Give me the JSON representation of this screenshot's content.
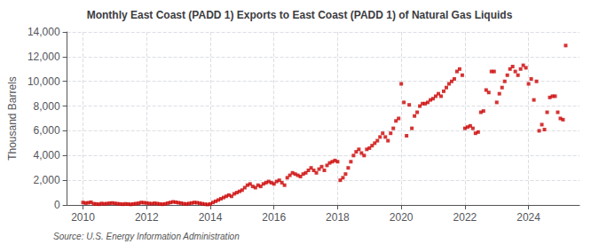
{
  "chart_data": {
    "type": "scatter",
    "title": "Monthly East Coast (PADD 1) Exports to East Coast (PADD 1) of Natural Gas Liquids",
    "ylabel": "Thousand Barrels",
    "annotations": [
      "Source: U.S. Energy Information Administration"
    ],
    "color": "#cc0000",
    "marker": "square",
    "grid": true,
    "xlim": [
      2009.5,
      2025.6
    ],
    "xticks": [
      2010,
      2012,
      2014,
      2016,
      2018,
      2020,
      2022,
      2024
    ],
    "ylim": [
      0,
      14000
    ],
    "yticks": [
      0,
      {
        "value": 2000,
        "label": "2,000"
      },
      {
        "value": 4000,
        "label": "4,000"
      },
      {
        "value": 6000,
        "label": "6,000"
      },
      {
        "value": 8000,
        "label": "8,000"
      },
      {
        "value": 10000,
        "label": "10,000"
      },
      {
        "value": 12000,
        "label": "12,000"
      },
      {
        "value": 14000,
        "label": "14,000"
      }
    ],
    "x": [
      2010.0,
      2010.083,
      2010.167,
      2010.25,
      2010.333,
      2010.417,
      2010.5,
      2010.583,
      2010.667,
      2010.75,
      2010.833,
      2010.917,
      2011.0,
      2011.083,
      2011.167,
      2011.25,
      2011.333,
      2011.417,
      2011.5,
      2011.583,
      2011.667,
      2011.75,
      2011.833,
      2011.917,
      2012.0,
      2012.083,
      2012.167,
      2012.25,
      2012.333,
      2012.417,
      2012.5,
      2012.583,
      2012.667,
      2012.75,
      2012.833,
      2012.917,
      2013.0,
      2013.083,
      2013.167,
      2013.25,
      2013.333,
      2013.417,
      2013.5,
      2013.583,
      2013.667,
      2013.75,
      2013.833,
      2013.917,
      2014.0,
      2014.083,
      2014.167,
      2014.25,
      2014.333,
      2014.417,
      2014.5,
      2014.583,
      2014.667,
      2014.75,
      2014.833,
      2014.917,
      2015.0,
      2015.083,
      2015.167,
      2015.25,
      2015.333,
      2015.417,
      2015.5,
      2015.583,
      2015.667,
      2015.75,
      2015.833,
      2015.917,
      2016.0,
      2016.083,
      2016.167,
      2016.25,
      2016.333,
      2016.417,
      2016.5,
      2016.583,
      2016.667,
      2016.75,
      2016.833,
      2016.917,
      2017.0,
      2017.083,
      2017.167,
      2017.25,
      2017.333,
      2017.417,
      2017.5,
      2017.583,
      2017.667,
      2017.75,
      2017.833,
      2017.917,
      2018.0,
      2018.083,
      2018.167,
      2018.25,
      2018.333,
      2018.417,
      2018.5,
      2018.583,
      2018.667,
      2018.75,
      2018.833,
      2018.917,
      2019.0,
      2019.083,
      2019.167,
      2019.25,
      2019.333,
      2019.417,
      2019.5,
      2019.583,
      2019.667,
      2019.75,
      2019.833,
      2019.917,
      2020.0,
      2020.083,
      2020.167,
      2020.25,
      2020.333,
      2020.417,
      2020.5,
      2020.583,
      2020.667,
      2020.75,
      2020.833,
      2020.917,
      2021.0,
      2021.083,
      2021.167,
      2021.25,
      2021.333,
      2021.417,
      2021.5,
      2021.583,
      2021.667,
      2021.75,
      2021.833,
      2021.917,
      2022.0,
      2022.083,
      2022.167,
      2022.25,
      2022.333,
      2022.417,
      2022.5,
      2022.583,
      2022.667,
      2022.75,
      2022.833,
      2022.917,
      2023.0,
      2023.083,
      2023.167,
      2023.25,
      2023.333,
      2023.417,
      2023.5,
      2023.583,
      2023.667,
      2023.75,
      2023.833,
      2023.917,
      2024.0,
      2024.083,
      2024.167,
      2024.25,
      2024.333,
      2024.417,
      2024.5,
      2024.583,
      2024.667,
      2024.75,
      2024.833,
      2024.917,
      2025.0,
      2025.083,
      2025.167
    ],
    "values": [
      200,
      150,
      180,
      220,
      100,
      80,
      60,
      120,
      90,
      110,
      140,
      160,
      130,
      100,
      80,
      60,
      90,
      70,
      50,
      80,
      110,
      140,
      200,
      180,
      160,
      120,
      100,
      140,
      110,
      80,
      60,
      90,
      150,
      200,
      250,
      220,
      180,
      150,
      100,
      80,
      120,
      160,
      200,
      180,
      140,
      100,
      60,
      40,
      80,
      200,
      300,
      400,
      500,
      600,
      700,
      800,
      700,
      900,
      1000,
      1100,
      1200,
      1400,
      1600,
      1700,
      1500,
      1400,
      1600,
      1500,
      1700,
      1800,
      1900,
      1800,
      1700,
      1900,
      2000,
      1800,
      1600,
      2200,
      2400,
      2600,
      2500,
      2400,
      2300,
      2500,
      2600,
      2800,
      3000,
      2800,
      2600,
      2900,
      3100,
      2800,
      3200,
      3400,
      3500,
      3600,
      3500,
      2000,
      2200,
      2500,
      3000,
      3500,
      4000,
      4300,
      4500,
      4200,
      4000,
      4500,
      4600,
      4800,
      5000,
      5200,
      5500,
      5800,
      5500,
      5200,
      5800,
      6200,
      6800,
      7000,
      9800,
      8300,
      5600,
      8100,
      6200,
      7200,
      7500,
      8000,
      8200,
      8200,
      8300,
      8500,
      8600,
      8800,
      9000,
      8800,
      9200,
      9500,
      9800,
      10000,
      10200,
      10800,
      11000,
      10500,
      6200,
      6300,
      6400,
      6200,
      5800,
      5900,
      7500,
      7600,
      9300,
      9100,
      10800,
      10800,
      8300,
      9000,
      9500,
      10000,
      10500,
      11000,
      11200,
      10800,
      10500,
      11000,
      11300,
      11100,
      9800,
      10200,
      8500,
      10000,
      6000,
      6500,
      6100,
      7500,
      8700,
      8800,
      8800,
      7500,
      7000,
      6900,
      12900
    ]
  }
}
